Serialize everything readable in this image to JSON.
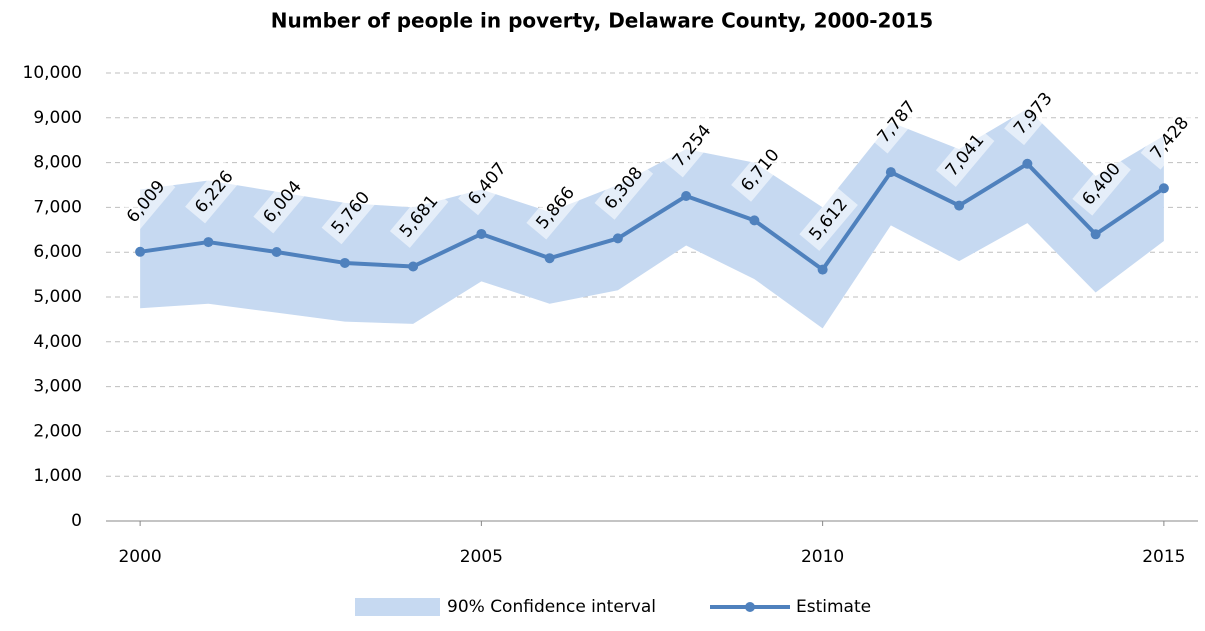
{
  "chart_data": {
    "type": "line",
    "title": "Number of people in poverty, Delaware County, 2000-2015",
    "x": [
      2000,
      2001,
      2002,
      2003,
      2004,
      2005,
      2006,
      2007,
      2008,
      2009,
      2010,
      2011,
      2012,
      2013,
      2014,
      2015
    ],
    "xlim": [
      1999.5,
      2015.5
    ],
    "xticks": [
      2000,
      2005,
      2010,
      2015
    ],
    "ylim": [
      0,
      10000
    ],
    "yticks": [
      0,
      {
        "value": 1000,
        "label": "1,000"
      },
      {
        "value": 2000,
        "label": "2,000"
      },
      {
        "value": 3000,
        "label": "3,000"
      },
      {
        "value": 4000,
        "label": "4,000"
      },
      {
        "value": 5000,
        "label": "5,000"
      },
      {
        "value": 6000,
        "label": "6,000"
      },
      {
        "value": 7000,
        "label": "7,000"
      },
      {
        "value": 8000,
        "label": "8,000"
      },
      {
        "value": 9000,
        "label": "9,000"
      },
      {
        "value": 10000,
        "label": "10,000"
      }
    ],
    "grid": true,
    "legend": "bottom",
    "series": [
      {
        "name": "90% Confidence interval",
        "color": "#c6d9f1",
        "lower": [
          4750,
          4850,
          4650,
          4450,
          4400,
          5350,
          4850,
          5150,
          6150,
          5400,
          4300,
          6600,
          5800,
          6650,
          5100,
          6250
        ],
        "upper": [
          7400,
          7600,
          7350,
          7100,
          7000,
          7400,
          6900,
          7500,
          8300,
          8000,
          7000,
          8900,
          8300,
          9200,
          7700,
          8600
        ]
      },
      {
        "name": "Estimate",
        "color": "#4f81bd",
        "values": [
          6009,
          6226,
          6004,
          5760,
          5681,
          6407,
          5866,
          6308,
          7254,
          6710,
          5612,
          7787,
          7041,
          7973,
          6400,
          7428
        ],
        "value_labels": [
          "6,009",
          "6,226",
          "6,004",
          "5,760",
          "5,681",
          "6,407",
          "5,866",
          "6,308",
          "7,254",
          "6,710",
          "5,612",
          "7,787",
          "7,041",
          "7,973",
          "6,400",
          "7,428"
        ]
      }
    ]
  }
}
